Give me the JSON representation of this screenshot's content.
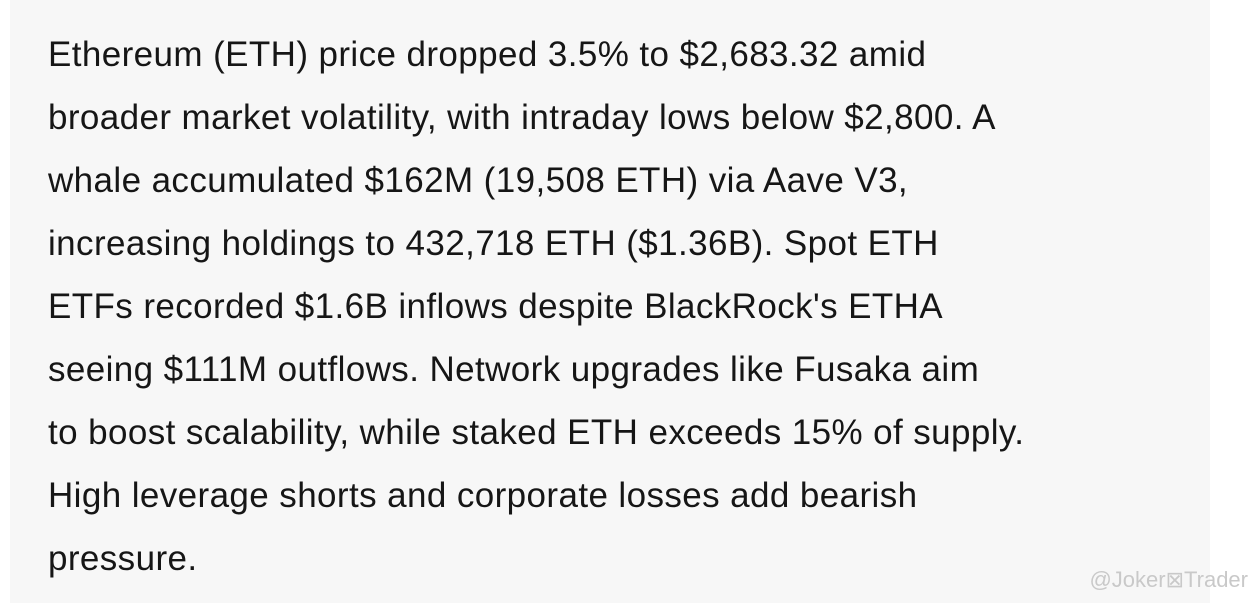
{
  "paragraph": {
    "lines": [
      "Ethereum (ETH) price dropped 3.5% to $2,683.32 amid",
      "broader market volatility, with intraday lows below $2,800. A",
      "whale accumulated $162M (19,508 ETH) via Aave V3,",
      "increasing holdings to 432,718 ETH ($1.36B). Spot ETH",
      "ETFs recorded $1.6B inflows despite BlackRock's ETHA",
      "seeing $111M outflows. Network upgrades like Fusaka aim",
      "to boost scalability, while staked ETH exceeds 15% of supply.",
      "High leverage shorts and corporate losses add bearish",
      "pressure."
    ]
  },
  "watermark": "@Joker⊠Trader"
}
